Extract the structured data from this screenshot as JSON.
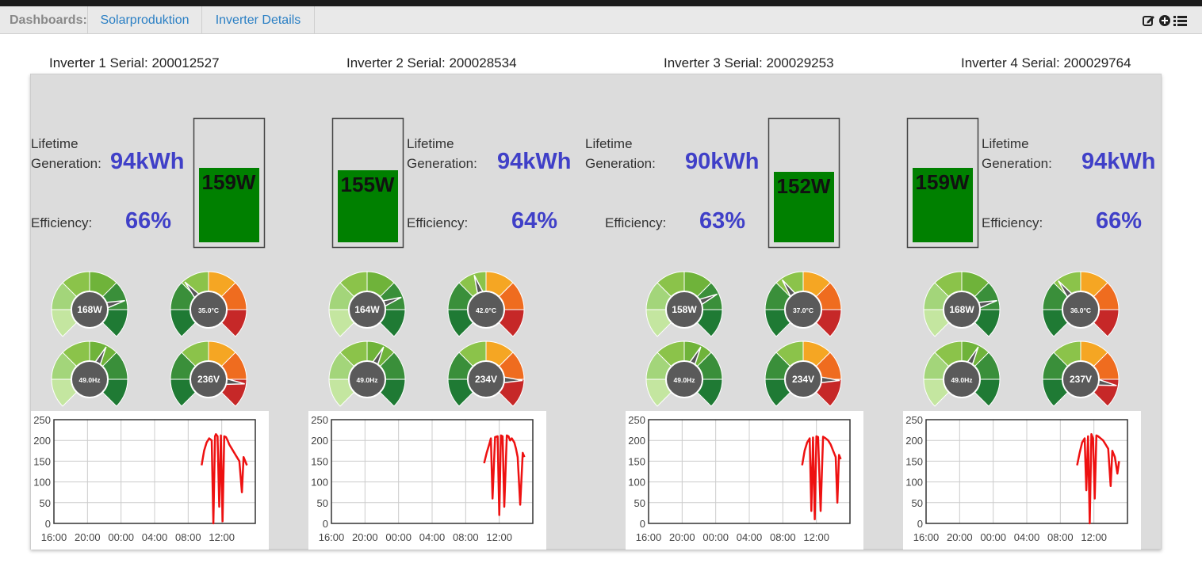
{
  "nav": {
    "label": "Dashboards:",
    "tabs": [
      {
        "label": "Solarproduktion"
      },
      {
        "label": "Inverter Details"
      }
    ],
    "icons": [
      "edit-icon",
      "add-circle-icon",
      "list-icon"
    ]
  },
  "colors": {
    "accent": "#4040c8",
    "link": "#2a7fc4",
    "bar": "#008000",
    "line": "#ee1111",
    "panel": "#dcdcdc"
  },
  "labels": {
    "lifetime_line1": "Lifetime",
    "lifetime_line2": "Generation:",
    "efficiency": "Efficiency:"
  },
  "inverters": [
    {
      "serial": "Inverter 1 Serial: 200012527",
      "lifetime": "94kWh",
      "efficiency": "66%",
      "power_text": "159W",
      "power_level": 0.62,
      "gauges": [
        {
          "label": "168W",
          "value": 0.78,
          "type": "green"
        },
        {
          "label": "35.0°C",
          "value": 0.35,
          "type": "temp"
        },
        {
          "label": "49.0Hz",
          "value": 0.6,
          "type": "green"
        },
        {
          "label": "236V",
          "value": 0.86,
          "type": "temp"
        }
      ]
    },
    {
      "serial": "Inverter 2 Serial: 200028534",
      "lifetime": "94kWh",
      "efficiency": "64%",
      "power_text": "155W",
      "power_level": 0.6,
      "gauges": [
        {
          "label": "164W",
          "value": 0.76,
          "type": "green"
        },
        {
          "label": "42.0°C",
          "value": 0.43,
          "type": "temp"
        },
        {
          "label": "49.0Hz",
          "value": 0.6,
          "type": "green"
        },
        {
          "label": "234V",
          "value": 0.84,
          "type": "temp"
        }
      ]
    },
    {
      "serial": "Inverter 3 Serial: 200029253",
      "lifetime": "90kWh",
      "efficiency": "63%",
      "power_text": "152W",
      "power_level": 0.59,
      "gauges": [
        {
          "label": "158W",
          "value": 0.74,
          "type": "green"
        },
        {
          "label": "37.0°C",
          "value": 0.37,
          "type": "temp"
        },
        {
          "label": "49.0Hz",
          "value": 0.6,
          "type": "green"
        },
        {
          "label": "234V",
          "value": 0.84,
          "type": "temp"
        }
      ]
    },
    {
      "serial": "Inverter 4 Serial: 200029764",
      "lifetime": "94kWh",
      "efficiency": "66%",
      "power_text": "159W",
      "power_level": 0.62,
      "gauges": [
        {
          "label": "168W",
          "value": 0.78,
          "type": "green"
        },
        {
          "label": "36.0°C",
          "value": 0.36,
          "type": "temp"
        },
        {
          "label": "49.0Hz",
          "value": 0.6,
          "type": "green"
        },
        {
          "label": "237V",
          "value": 0.87,
          "type": "temp"
        }
      ]
    }
  ],
  "chart_data": [
    {
      "type": "line",
      "title": "",
      "ylim": [
        0,
        250
      ],
      "y_ticks": [
        0,
        50,
        100,
        150,
        200,
        250
      ],
      "x_tick_labels": [
        "16:00",
        "20:00",
        "00:00",
        "04:00",
        "08:00",
        "12:00"
      ],
      "series": [
        {
          "x": [
            9.6,
            9.9,
            10.2,
            10.5,
            10.8,
            11.0,
            11.2,
            11.3,
            11.5,
            11.7,
            11.9,
            12.1,
            12.3,
            12.5,
            12.7,
            12.9,
            13.2,
            13.5,
            13.8,
            14.1,
            14.4,
            14.6,
            14.8,
            15.0
          ],
          "y": [
            140,
            175,
            195,
            205,
            200,
            0,
            210,
            215,
            210,
            40,
            212,
            5,
            210,
            208,
            200,
            190,
            180,
            170,
            160,
            150,
            75,
            160,
            150,
            140
          ]
        }
      ]
    },
    {
      "type": "line",
      "title": "",
      "ylim": [
        0,
        250
      ],
      "y_ticks": [
        0,
        50,
        100,
        150,
        200,
        250
      ],
      "x_tick_labels": [
        "16:00",
        "20:00",
        "00:00",
        "04:00",
        "08:00",
        "12:00"
      ],
      "series": [
        {
          "x": [
            10.2,
            10.5,
            10.8,
            11.0,
            11.2,
            11.5,
            11.8,
            12.0,
            12.2,
            12.4,
            12.6,
            12.9,
            13.1,
            13.3,
            13.5,
            13.8,
            14.0,
            14.2,
            14.5,
            14.8,
            15.0
          ],
          "y": [
            145,
            170,
            190,
            205,
            60,
            208,
            210,
            20,
            212,
            210,
            40,
            212,
            210,
            200,
            205,
            195,
            180,
            160,
            45,
            170,
            160
          ]
        }
      ]
    },
    {
      "type": "line",
      "title": "",
      "ylim": [
        0,
        250
      ],
      "y_ticks": [
        0,
        50,
        100,
        150,
        200,
        250
      ],
      "x_tick_labels": [
        "16:00",
        "20:00",
        "00:00",
        "04:00",
        "08:00",
        "12:00"
      ],
      "series": [
        {
          "x": [
            10.3,
            10.6,
            10.9,
            11.2,
            11.4,
            11.6,
            11.8,
            12.0,
            12.2,
            12.5,
            12.8,
            13.1,
            13.4,
            13.7,
            14.0,
            14.3,
            14.5,
            14.7,
            14.9
          ],
          "y": [
            140,
            175,
            195,
            205,
            30,
            207,
            10,
            210,
            208,
            30,
            209,
            205,
            200,
            190,
            175,
            160,
            50,
            165,
            155
          ]
        }
      ]
    },
    {
      "type": "line",
      "title": "",
      "ylim": [
        0,
        250
      ],
      "y_ticks": [
        0,
        50,
        100,
        150,
        200,
        250
      ],
      "x_tick_labels": [
        "16:00",
        "20:00",
        "00:00",
        "04:00",
        "08:00",
        "12:00"
      ],
      "series": [
        {
          "x": [
            10.0,
            10.3,
            10.6,
            10.9,
            11.1,
            11.3,
            11.5,
            11.7,
            11.9,
            12.1,
            12.3,
            12.5,
            12.8,
            13.1,
            13.4,
            13.7,
            14.0,
            14.2,
            14.5,
            14.8,
            15.0
          ],
          "y": [
            140,
            170,
            195,
            205,
            80,
            210,
            0,
            215,
            205,
            60,
            212,
            210,
            205,
            200,
            190,
            180,
            90,
            175,
            160,
            120,
            150
          ]
        }
      ]
    }
  ]
}
